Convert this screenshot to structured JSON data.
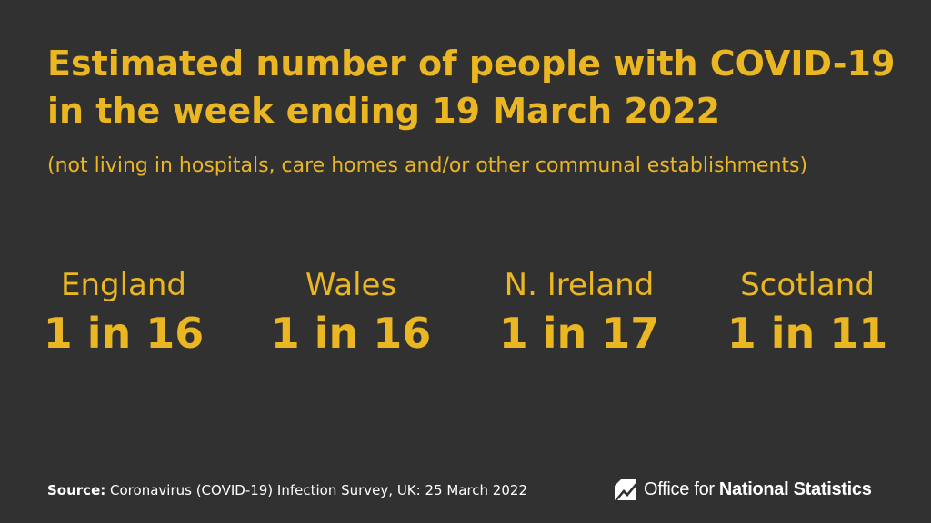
{
  "title": {
    "line1": "Estimated number of people with COVID-19",
    "line2": "in the week ending 19 March 2022"
  },
  "subtitle": "(not living in hospitals, care homes and/or other communal establishments)",
  "nations": [
    {
      "name": "England",
      "value": "1 in 16"
    },
    {
      "name": "Wales",
      "value": "1 in 16"
    },
    {
      "name": "N. Ireland",
      "value": "1 in 17"
    },
    {
      "name": "Scotland",
      "value": "1 in 11"
    }
  ],
  "footer": {
    "source_label": "Source:",
    "source_text": "Coronavirus (COVID-19) Infection Survey, UK: 25 March 2022",
    "logo_icon": "ons-logo-icon",
    "logo_text_regular": "Office for",
    "logo_text_bold": "National Statistics"
  },
  "colors": {
    "background": "#323132",
    "accent": "#eab621",
    "footer_text": "#ffffff"
  }
}
